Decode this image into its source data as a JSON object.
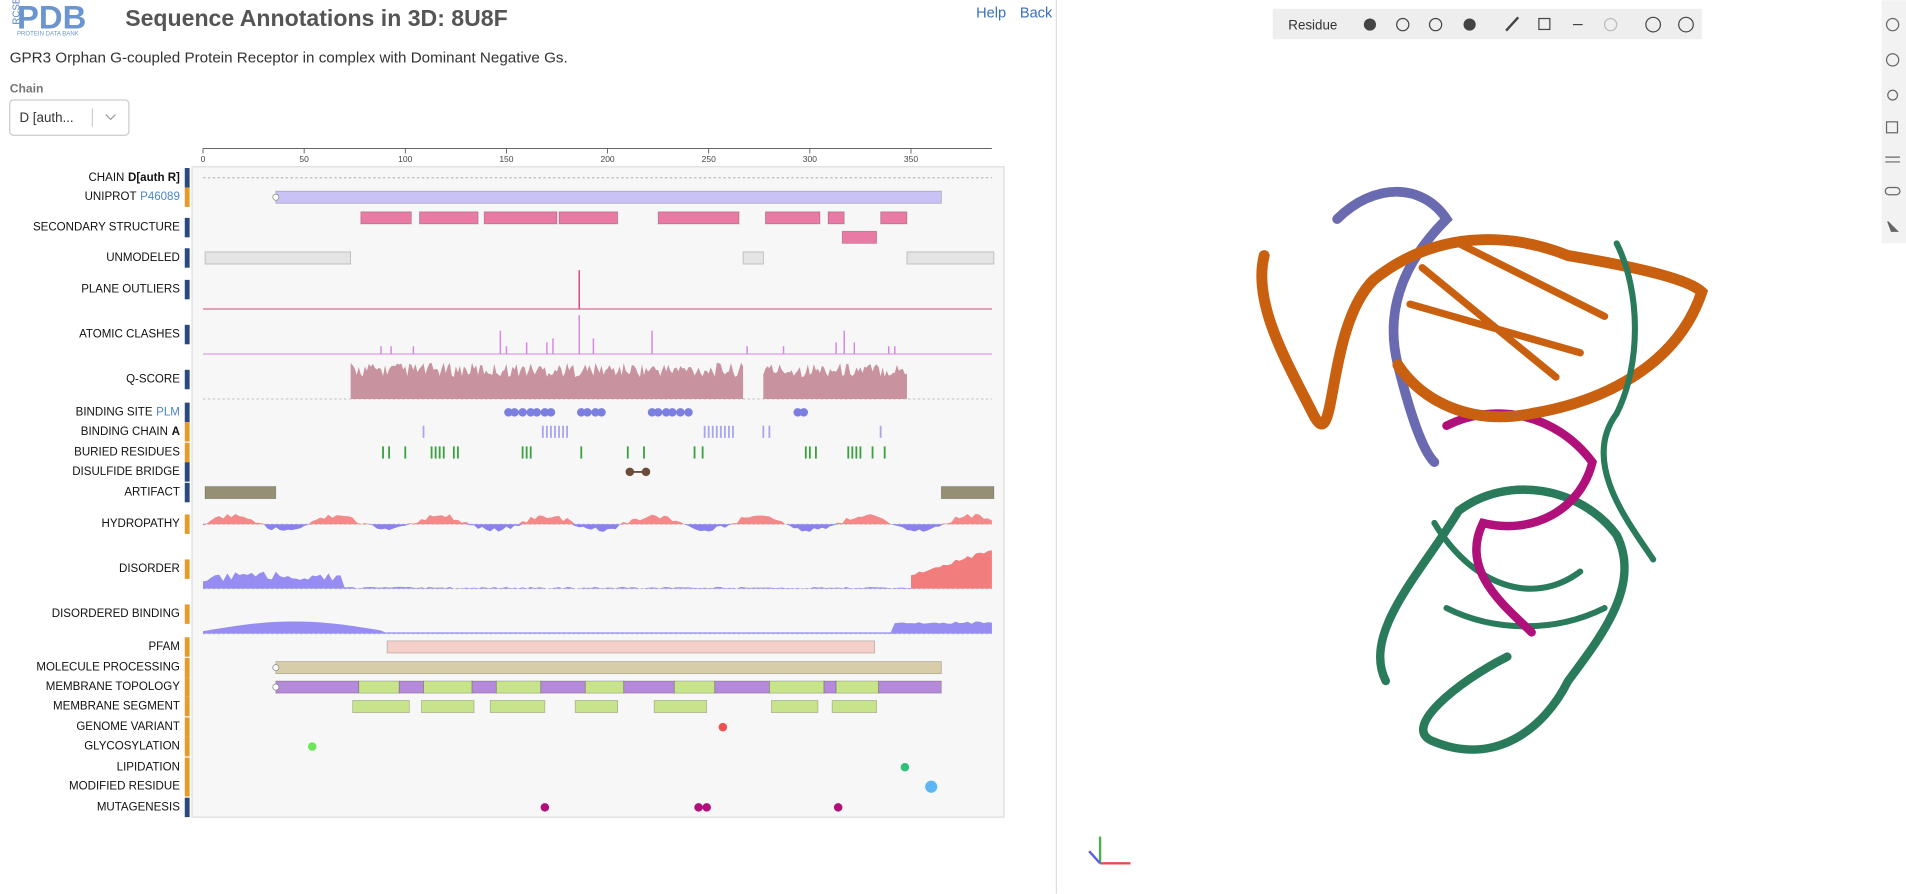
{
  "header": {
    "logo": {
      "main": "PDB",
      "side": "RCSB",
      "sub": "PROTEIN DATA BANK"
    },
    "title": "Sequence Annotations in 3D: 8U8F",
    "subtitle": "GPR3 Orphan G-coupled Protein Receptor in complex with Dominant Negative Gs.",
    "help": "Help",
    "back": "Back"
  },
  "chain": {
    "label": "Chain",
    "value": "D [auth..."
  },
  "ruler": {
    "ticks": [
      0,
      50,
      100,
      150,
      200,
      250,
      300,
      350
    ],
    "xlim": [
      0,
      390
    ]
  },
  "tracks": [
    {
      "label": "CHAIN",
      "bold": "D[auth R]",
      "kind": "line"
    },
    {
      "label": "UNIPROT",
      "link": "P46089",
      "kind": "range",
      "color": "#c9c3f5",
      "ranges": [
        [
          36,
          365
        ]
      ]
    },
    {
      "label": "SECONDARY STRUCTURE",
      "kind": "range",
      "color": "#e87aa3",
      "ranges": [
        [
          78,
          103
        ],
        [
          107,
          136
        ],
        [
          139,
          175
        ],
        [
          176,
          205
        ],
        [
          225,
          265
        ],
        [
          278,
          305
        ],
        [
          309,
          317
        ],
        [
          316,
          333
        ],
        [
          335,
          348
        ]
      ]
    },
    {
      "label": "UNMODELED",
      "kind": "range",
      "color": "#e4e4e4",
      "ranges": [
        [
          1,
          73
        ],
        [
          267,
          277
        ],
        [
          348,
          391
        ]
      ]
    },
    {
      "label": "PLANE OUTLIERS",
      "kind": "spikes",
      "color": "#d9467a",
      "positions": [
        186
      ],
      "heights": [
        1
      ]
    },
    {
      "label": "ATOMIC CLASHES",
      "kind": "spikes",
      "color": "#d884e6",
      "positions": [
        88,
        93,
        104,
        147,
        150,
        160,
        170,
        173,
        186,
        193,
        222,
        269,
        287,
        313,
        317,
        322,
        339,
        342
      ],
      "heights": [
        0.2,
        0.2,
        0.2,
        0.6,
        0.2,
        0.3,
        0.3,
        0.4,
        1,
        0.4,
        0.6,
        0.2,
        0.2,
        0.3,
        0.6,
        0.3,
        0.2,
        0.2
      ]
    },
    {
      "label": "Q-SCORE",
      "kind": "area",
      "color": "#c8929f",
      "ranges": [
        [
          73,
          267
        ],
        [
          277,
          348
        ]
      ]
    },
    {
      "label": "BINDING SITE",
      "link": "PLM",
      "kind": "dots",
      "color": "#7b7fe0",
      "positions": [
        151,
        154,
        158,
        162,
        165,
        169,
        172,
        187,
        190,
        194,
        197,
        222,
        225,
        229,
        232,
        236,
        240,
        294,
        297
      ]
    },
    {
      "label": "BINDING CHAIN",
      "bold": "A",
      "kind": "ticks",
      "color": "#a9a6ef",
      "positions": [
        109,
        168,
        170,
        172,
        174,
        176,
        178,
        180,
        248,
        250,
        252,
        254,
        256,
        258,
        260,
        262,
        277,
        280,
        335
      ]
    },
    {
      "label": "BURIED RESIDUES",
      "kind": "ticks",
      "color": "#3aa040",
      "positions": [
        89,
        92,
        100,
        113,
        115,
        117,
        119,
        124,
        126,
        158,
        160,
        162,
        187,
        210,
        218,
        243,
        247,
        298,
        300,
        303,
        319,
        321,
        323,
        325,
        331,
        337
      ]
    },
    {
      "label": "DISULFIDE BRIDGE",
      "kind": "bond",
      "color": "#6b4c3a",
      "positions": [
        211,
        219
      ]
    },
    {
      "label": "ARTIFACT",
      "kind": "range",
      "color": "#958f76",
      "ranges": [
        [
          1,
          36
        ],
        [
          365,
          391
        ]
      ]
    },
    {
      "label": "HYDROPATHY",
      "kind": "hydro",
      "colors": [
        "#f27d7d",
        "#8b80f0"
      ]
    },
    {
      "label": "DISORDER",
      "kind": "disorder",
      "colors": [
        "#8b80f0",
        "#f27d7d"
      ]
    },
    {
      "label": "DISORDERED BINDING",
      "kind": "disbind",
      "color": "#8b80f0"
    },
    {
      "label": "PFAM",
      "kind": "range",
      "color": "#f5cfc9",
      "ranges": [
        [
          91,
          332
        ]
      ]
    },
    {
      "label": "MOLECULE PROCESSING",
      "kind": "range",
      "color": "#d7cda8",
      "ranges": [
        [
          36,
          365
        ]
      ]
    },
    {
      "label": "MEMBRANE TOPOLOGY",
      "kind": "range",
      "colors": [
        "#b58ad9",
        "#c7e38c"
      ],
      "ranges": [
        [
          36,
          77
        ],
        [
          77,
          97
        ],
        [
          97,
          109
        ],
        [
          109,
          133
        ],
        [
          133,
          145
        ],
        [
          145,
          167
        ],
        [
          167,
          189
        ],
        [
          189,
          208
        ],
        [
          208,
          233
        ],
        [
          233,
          253
        ],
        [
          253,
          280
        ],
        [
          280,
          307
        ],
        [
          307,
          313
        ],
        [
          313,
          334
        ],
        [
          334,
          365
        ]
      ]
    },
    {
      "label": "MEMBRANE SEGMENT",
      "kind": "range",
      "color": "#c7e38c",
      "ranges": [
        [
          74,
          102
        ],
        [
          108,
          134
        ],
        [
          142,
          169
        ],
        [
          184,
          205
        ],
        [
          223,
          249
        ],
        [
          281,
          304
        ],
        [
          311,
          333
        ]
      ]
    },
    {
      "label": "GENOME VARIANT",
      "kind": "dots",
      "color": "#ef5050",
      "positions": [
        257
      ]
    },
    {
      "label": "GLYCOSYLATION",
      "kind": "dots",
      "color": "#6ee65a",
      "positions": [
        54
      ]
    },
    {
      "label": "LIPIDATION",
      "kind": "dots",
      "color": "#2fc07a",
      "positions": [
        347
      ]
    },
    {
      "label": "MODIFIED RESIDUE",
      "kind": "pill",
      "color": "#5cb6f5",
      "ranges": [
        [
          357,
          363
        ]
      ]
    },
    {
      "label": "MUTAGENESIS",
      "kind": "dots",
      "color": "#b0107a",
      "positions": [
        169,
        245,
        249,
        314
      ]
    }
  ],
  "viewer": {
    "mode": "Residue"
  }
}
